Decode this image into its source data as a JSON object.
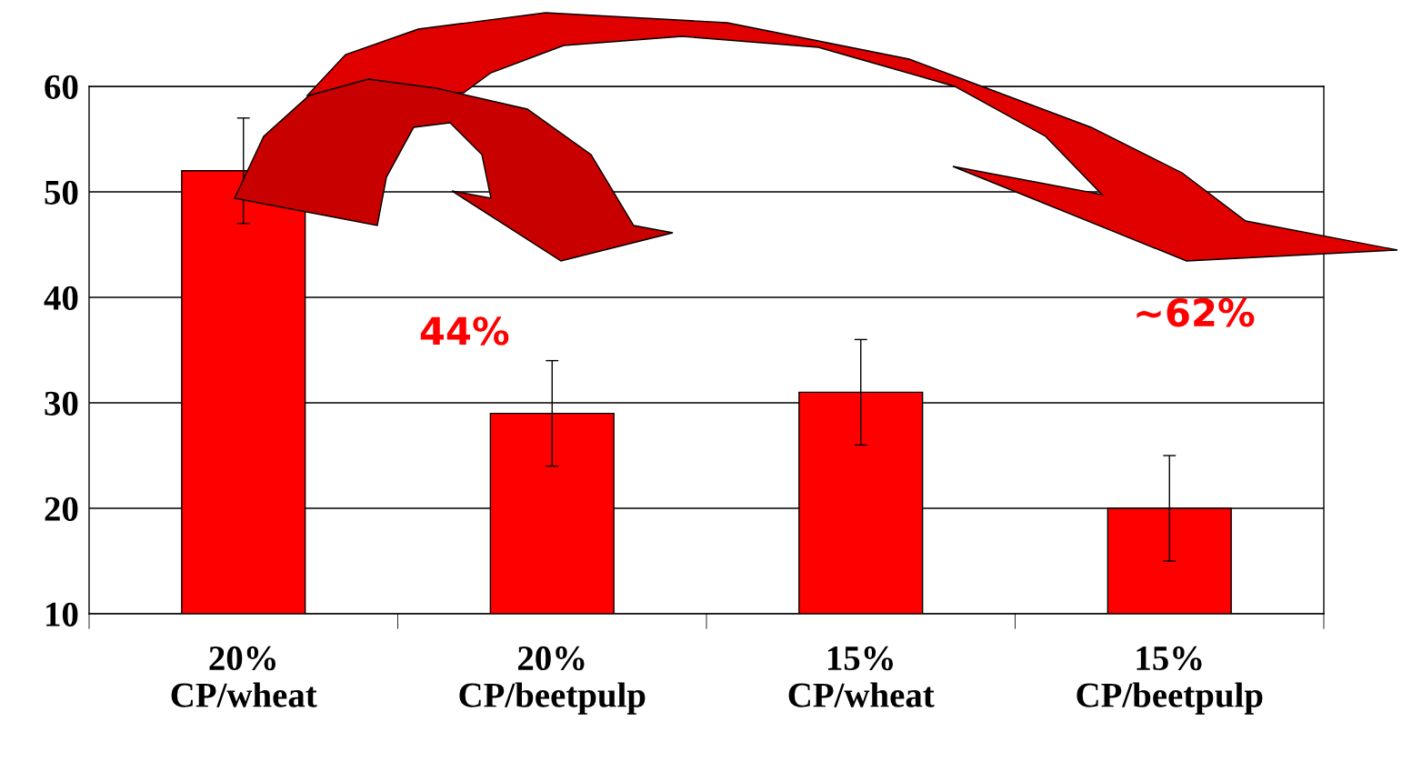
{
  "chart_data": {
    "type": "bar",
    "categories": [
      "20%\nCP/wheat",
      "20%\nCP/beetpulp",
      "15%\nCP/wheat",
      "15%\nCP/beetpulp"
    ],
    "values": [
      52,
      29,
      31,
      20
    ],
    "errors": [
      5,
      5,
      5,
      5
    ],
    "color": "#ff0000",
    "ylim": [
      10,
      60
    ],
    "yticks": [
      10,
      20,
      30,
      40,
      50,
      60
    ],
    "grid": "y",
    "annotations": [
      "44%",
      "~62%"
    ]
  }
}
